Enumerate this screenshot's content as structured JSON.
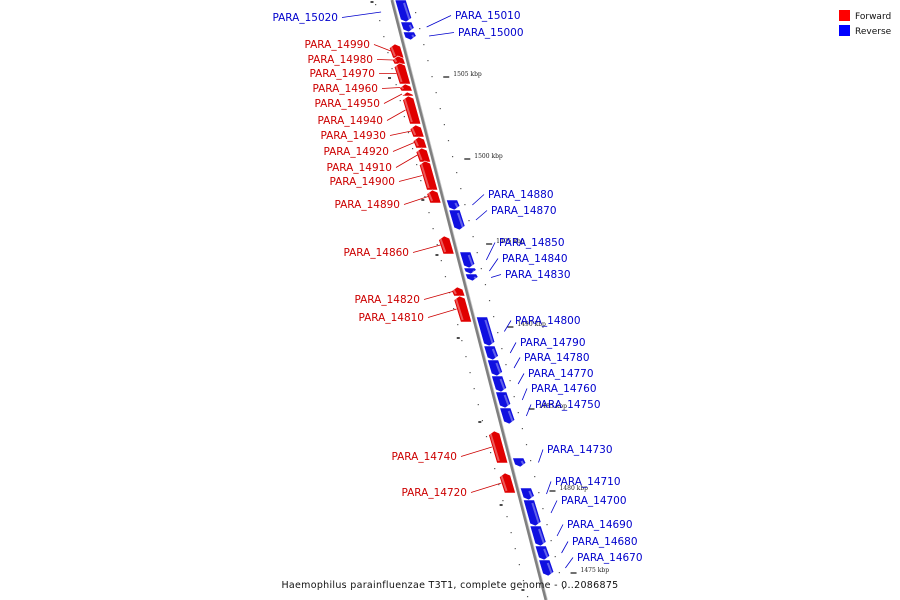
{
  "figure": {
    "caption": "Haemophilus parainfluenzae T3T1, complete genome - 0..2086875"
  },
  "legend": [
    {
      "label": "Forward",
      "color": "#ff0000"
    },
    {
      "label": "Reverse",
      "color": "#0000ff"
    }
  ],
  "colors": {
    "forward": "#e00000",
    "reverse": "#1010e0",
    "backbone": "#808080",
    "forward_label": "#cc0000",
    "reverse_label": "#0000cc"
  },
  "ticks": [
    {
      "label": "1505 kbp"
    },
    {
      "label": "1500 kbp"
    },
    {
      "label": "1495 kbp"
    },
    {
      "label": "1490 kbp"
    },
    {
      "label": "1485 kbp"
    },
    {
      "label": "1480 kbp"
    },
    {
      "label": "1475 kbp"
    }
  ],
  "genes": {
    "forward": [
      "PARA_14990",
      "PARA_14980",
      "PARA_14970",
      "PARA_14960",
      "PARA_14950",
      "PARA_14940",
      "PARA_14930",
      "PARA_14920",
      "PARA_14910",
      "PARA_14900",
      "PARA_14890",
      "PARA_14860",
      "PARA_14820",
      "PARA_14810",
      "PARA_14740",
      "PARA_14720"
    ],
    "reverse": [
      "PARA_15020",
      "PARA_15010",
      "PARA_15000",
      "PARA_14880",
      "PARA_14870",
      "PARA_14850",
      "PARA_14840",
      "PARA_14830",
      "PARA_14800",
      "PARA_14790",
      "PARA_14780",
      "PARA_14770",
      "PARA_14760",
      "PARA_14750",
      "PARA_14730",
      "PARA_14710",
      "PARA_14700",
      "PARA_14690",
      "PARA_14680",
      "PARA_14670"
    ]
  }
}
